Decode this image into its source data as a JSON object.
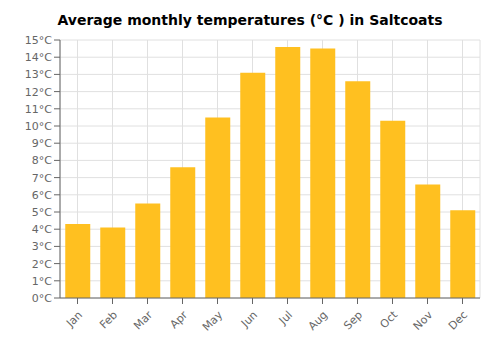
{
  "chart_data": {
    "type": "bar",
    "title": "Average monthly temperatures (°C ) in Saltcoats",
    "categories": [
      "Jan",
      "Feb",
      "Mar",
      "Apr",
      "May",
      "Jun",
      "Jul",
      "Aug",
      "Sep",
      "Oct",
      "Nov",
      "Dec"
    ],
    "values": [
      4.3,
      4.1,
      5.5,
      7.6,
      10.5,
      13.1,
      14.6,
      14.5,
      12.6,
      10.3,
      6.6,
      5.1
    ],
    "color": "#FFC020",
    "ylim": [
      0,
      15
    ],
    "yticks": [
      {
        "value": 0,
        "label": "0°C"
      },
      {
        "value": 1,
        "label": "1°C"
      },
      {
        "value": 2,
        "label": "2°C"
      },
      {
        "value": 3,
        "label": "3°C"
      },
      {
        "value": 4,
        "label": "4°C"
      },
      {
        "value": 5,
        "label": "5°C"
      },
      {
        "value": 6,
        "label": "6°C"
      },
      {
        "value": 7,
        "label": "7°C"
      },
      {
        "value": 8,
        "label": "8°C"
      },
      {
        "value": 9,
        "label": "9°C"
      },
      {
        "value": 10,
        "label": "10°C"
      },
      {
        "value": 11,
        "label": "11°C"
      },
      {
        "value": 12,
        "label": "12°C"
      },
      {
        "value": 13,
        "label": "13°C"
      },
      {
        "value": 14,
        "label": "14°C"
      },
      {
        "value": 15,
        "label": "15°C"
      }
    ],
    "grid": true
  }
}
